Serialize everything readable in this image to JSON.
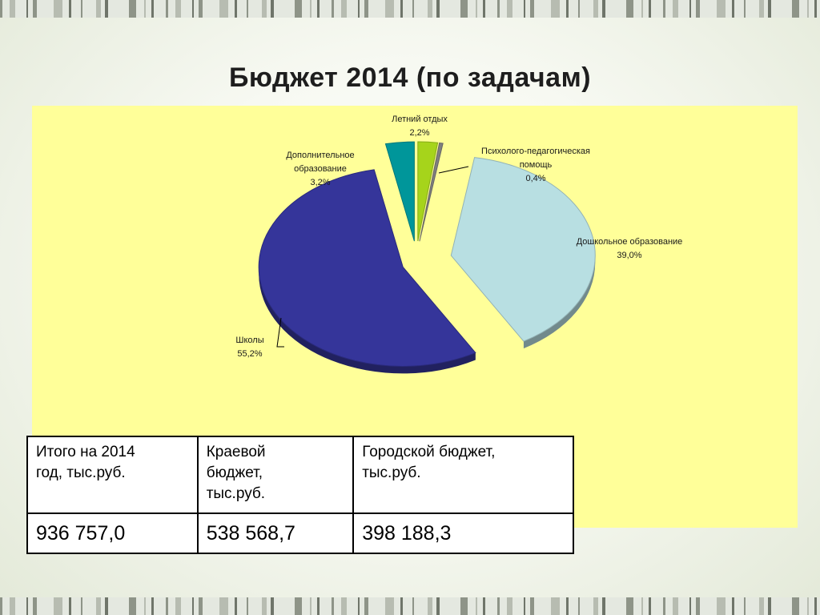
{
  "slide": {
    "title": "Бюджет 2014 (по задачам)"
  },
  "colors": {
    "plot_background": "#ffff99",
    "schools": "#35359a",
    "preschool": "#b8dfe2",
    "additional": "#00969a",
    "summer": "#a6d41b",
    "psych": "#7f7f7f"
  },
  "chart_data": {
    "type": "pie",
    "title": "",
    "slices": [
      {
        "label": "Летний отдых",
        "value": 2.2,
        "value_label": "2,2%",
        "color": "#a6d41b"
      },
      {
        "label": "Психолого-педагогическая помощь",
        "label_lines": [
          "Психолого-педагогическая",
          "помощь"
        ],
        "value": 0.4,
        "value_label": "0,4%",
        "color": "#7f7f7f"
      },
      {
        "label": "Дошкольное образование",
        "value": 39.0,
        "value_label": "39,0%",
        "color": "#b8dfe2"
      },
      {
        "label": "Школы",
        "value": 55.2,
        "value_label": "55,2%",
        "color": "#35359a"
      },
      {
        "label": "Дополнительное образование",
        "label_lines": [
          "Дополнительное",
          "образование"
        ],
        "value": 3.2,
        "value_label": "3,2%",
        "color": "#00969a"
      }
    ],
    "exploded": true,
    "three_d": true,
    "legend": "none"
  },
  "table": {
    "headers": [
      [
        "Итого на 2014",
        "год, тыс.руб."
      ],
      [
        "Краевой",
        "бюджет,",
        "тыс.руб."
      ],
      [
        "Городской бюджет,",
        "тыс.руб."
      ]
    ],
    "values": [
      "936 757,0",
      "538 568,7",
      "398 188,3"
    ]
  }
}
